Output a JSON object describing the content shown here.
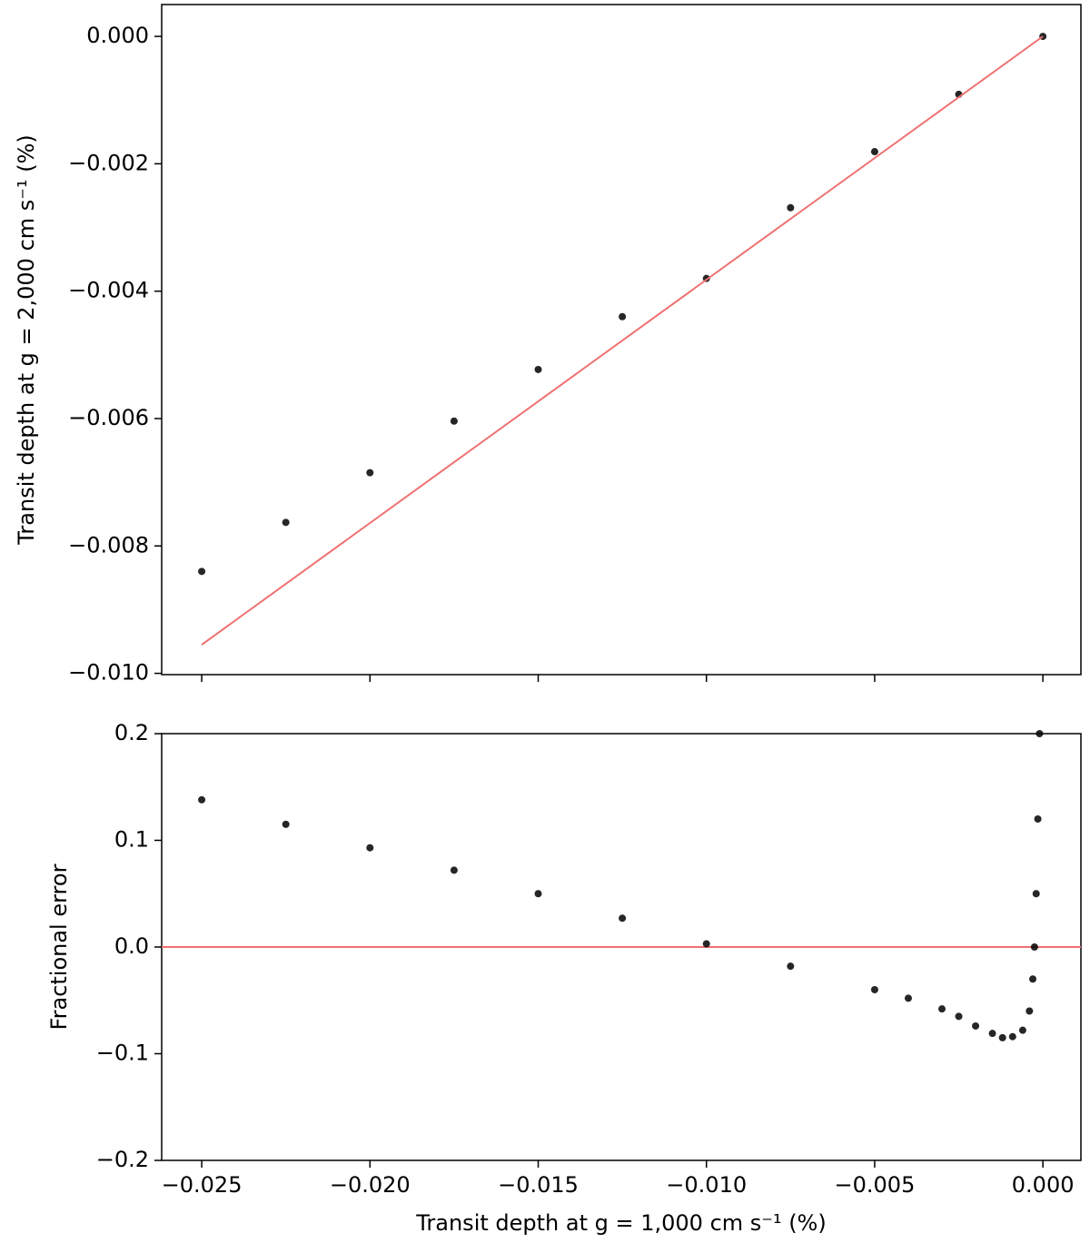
{
  "chart_data": [
    {
      "type": "scatter",
      "ylabel": "Transit depth at g = 2,000 cm s⁻¹ (%)",
      "xlim": [
        -0.02619,
        0.00113
      ],
      "ylim": [
        -0.01002,
        0.0005
      ],
      "xticks": [
        -0.025,
        -0.02,
        -0.015,
        -0.01,
        -0.005,
        0
      ],
      "yticks": [
        {
          "value": 0,
          "label": "0.000"
        },
        {
          "value": -0.002,
          "label": "−0.002"
        },
        {
          "value": -0.004,
          "label": "−0.004"
        },
        {
          "value": -0.006,
          "label": "−0.006"
        },
        {
          "value": -0.008,
          "label": "−0.008"
        },
        {
          "value": -0.01,
          "label": "−0.010"
        }
      ],
      "series": [
        {
          "name": "data",
          "kind": "scatter",
          "color": "#000000",
          "x": [
            -0.025,
            -0.0225,
            -0.02,
            -0.0175,
            -0.015,
            -0.0125,
            -0.01,
            -0.0075,
            -0.005,
            -0.0025,
            0
          ],
          "values": [
            -0.0084,
            -0.00763,
            -0.00685,
            -0.00604,
            -0.00523,
            -0.0044,
            -0.0038,
            -0.00269,
            -0.00181,
            -0.00091,
            0
          ]
        },
        {
          "name": "fit",
          "kind": "line",
          "color": "#f07070",
          "x": [
            -0.025,
            0
          ],
          "values": [
            -0.00955,
            0
          ]
        }
      ]
    },
    {
      "type": "scatter",
      "xlabel": "Transit depth at g = 1,000 cm s⁻¹ (%)",
      "ylabel": "Fractional error",
      "xlim": [
        -0.02619,
        0.00113
      ],
      "ylim": [
        -0.2,
        0.2
      ],
      "xticks": [
        {
          "value": -0.025,
          "label": "−0.025"
        },
        {
          "value": -0.02,
          "label": "−0.020"
        },
        {
          "value": -0.015,
          "label": "−0.015"
        },
        {
          "value": -0.01,
          "label": "−0.010"
        },
        {
          "value": -0.005,
          "label": "−0.005"
        },
        {
          "value": 0,
          "label": "0.000"
        }
      ],
      "yticks": [
        0.2,
        0.1,
        {
          "value": 0,
          "label": "0.0"
        },
        {
          "value": -0.1,
          "label": "−0.1"
        },
        {
          "value": -0.2,
          "label": "−0.2"
        }
      ],
      "reference_line": {
        "value": 0,
        "color": "#f07070"
      },
      "series": [
        {
          "name": "data",
          "kind": "scatter",
          "color": "#000000",
          "x": [
            -0.025,
            -0.0225,
            -0.02,
            -0.0175,
            -0.015,
            -0.0125,
            -0.01,
            -0.0075,
            -0.005,
            -0.004,
            -0.003,
            -0.0025,
            -0.002,
            -0.0015,
            -0.0012,
            -0.0009,
            -0.0006,
            -0.0004,
            -0.0003,
            -0.00025,
            -0.0002,
            -0.00015,
            -0.0001
          ],
          "values": [
            0.138,
            0.115,
            0.093,
            0.072,
            0.05,
            0.027,
            0.003,
            -0.018,
            -0.04,
            -0.048,
            -0.058,
            -0.065,
            -0.074,
            -0.081,
            -0.085,
            -0.084,
            -0.078,
            -0.06,
            -0.03,
            0.0,
            0.05,
            0.12,
            0.2
          ]
        }
      ]
    }
  ]
}
